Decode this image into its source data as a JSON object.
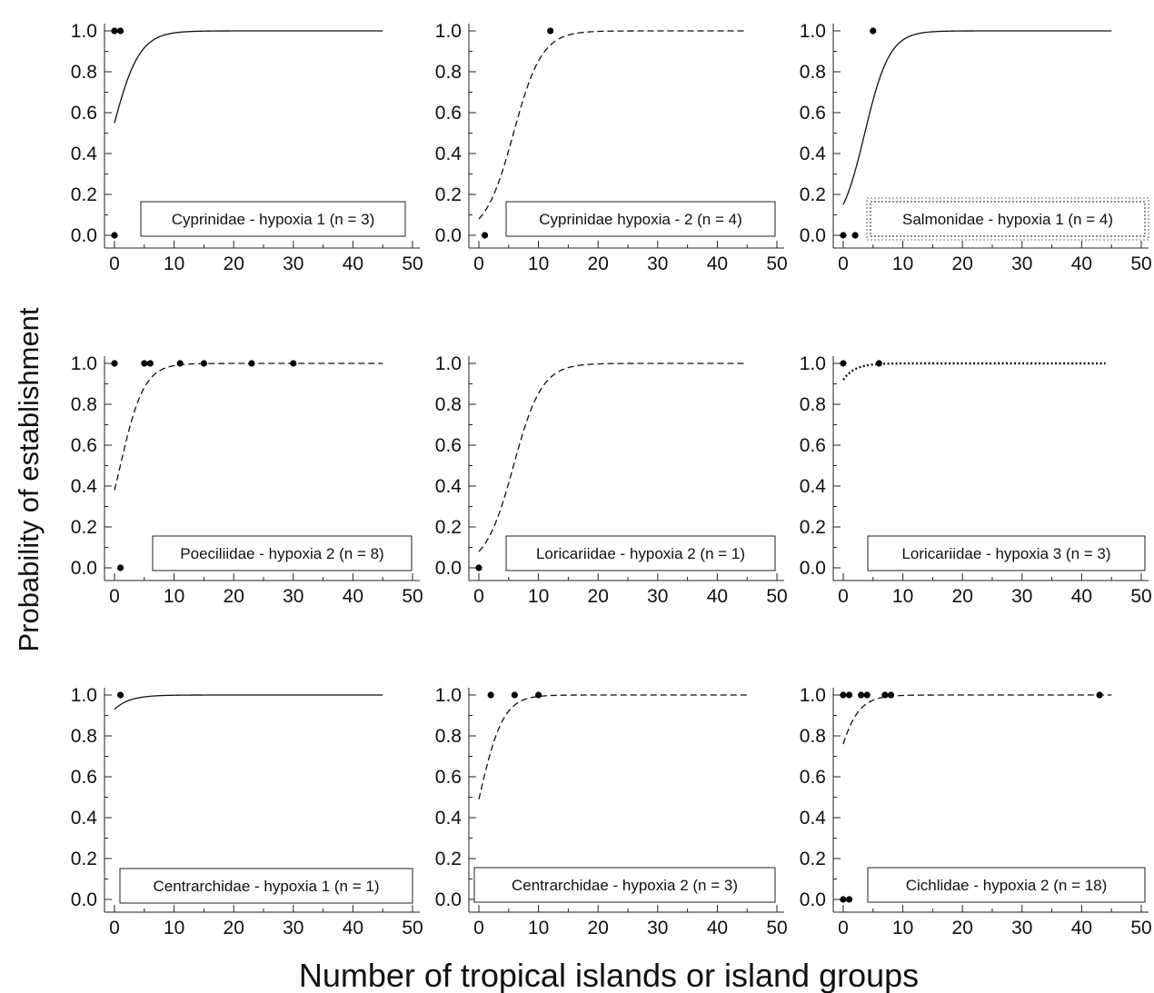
{
  "figure": {
    "ylabel": "Probability of establishment",
    "xlabel": "Number of tropical islands or island groups"
  },
  "chart_data": [
    {
      "type": "line",
      "legend": "Cyprinidae - hypoxia 1 (n = 3)",
      "line_style": "solid",
      "legend_style": "solid",
      "xlim": [
        0,
        50
      ],
      "ylim": [
        0,
        1
      ],
      "xticks": [
        "0",
        "10",
        "20",
        "30",
        "40",
        "50"
      ],
      "yticks": [
        "0.0",
        "0.2",
        "0.4",
        "0.6",
        "0.8",
        "1.0"
      ],
      "curve": {
        "x_start": 0,
        "x_end": 45,
        "y_at_0": 0.55,
        "slope": 0.44
      },
      "points": [
        {
          "x": 0,
          "y": 0
        },
        {
          "x": 0,
          "y": 1
        },
        {
          "x": 1,
          "y": 1
        }
      ]
    },
    {
      "type": "line",
      "legend": "Cyprinidae hypoxia - 2 (n = 4)",
      "line_style": "dashed",
      "legend_style": "solid",
      "xlim": [
        0,
        50
      ],
      "ylim": [
        0,
        1
      ],
      "xticks": [
        "0",
        "10",
        "20",
        "30",
        "40",
        "50"
      ],
      "yticks": [
        "0.0",
        "0.2",
        "0.4",
        "0.6",
        "0.8",
        "1.0"
      ],
      "curve": {
        "x_start": 0,
        "x_end": 45,
        "y_at_0": 0.08,
        "slope": 0.42
      },
      "points": [
        {
          "x": 1,
          "y": 0
        },
        {
          "x": 12,
          "y": 1
        }
      ]
    },
    {
      "type": "line",
      "legend": "Salmonidae - hypoxia 1 (n = 4)",
      "line_style": "solid",
      "legend_style": "dotted",
      "xlim": [
        0,
        50
      ],
      "ylim": [
        0,
        1
      ],
      "xticks": [
        "0",
        "10",
        "20",
        "30",
        "40",
        "50"
      ],
      "yticks": [
        "0.0",
        "0.2",
        "0.4",
        "0.6",
        "0.8",
        "1.0"
      ],
      "curve": {
        "x_start": 0,
        "x_end": 45,
        "y_at_0": 0.15,
        "slope": 0.48
      },
      "points": [
        {
          "x": 0,
          "y": 0
        },
        {
          "x": 2,
          "y": 0
        },
        {
          "x": 5,
          "y": 1
        }
      ]
    },
    {
      "type": "line",
      "legend": "Poeciliidae - hypoxia 2 (n = 8)",
      "line_style": "dashed",
      "legend_style": "solid",
      "xlim": [
        0,
        50
      ],
      "ylim": [
        0,
        1
      ],
      "xticks": [
        "0",
        "10",
        "20",
        "30",
        "40",
        "50"
      ],
      "yticks": [
        "0.0",
        "0.2",
        "0.4",
        "0.6",
        "0.8",
        "1.0"
      ],
      "curve": {
        "x_start": 0,
        "x_end": 45,
        "y_at_0": 0.38,
        "slope": 0.5
      },
      "points": [
        {
          "x": 0,
          "y": 1
        },
        {
          "x": 1,
          "y": 0
        },
        {
          "x": 5,
          "y": 1
        },
        {
          "x": 6,
          "y": 1
        },
        {
          "x": 11,
          "y": 1
        },
        {
          "x": 15,
          "y": 1
        },
        {
          "x": 23,
          "y": 1
        },
        {
          "x": 30,
          "y": 1
        }
      ]
    },
    {
      "type": "line",
      "legend": "Loricariidae - hypoxia 2 (n = 1)",
      "line_style": "dashed",
      "legend_style": "solid",
      "xlim": [
        0,
        50
      ],
      "ylim": [
        0,
        1
      ],
      "xticks": [
        "0",
        "10",
        "20",
        "30",
        "40",
        "50"
      ],
      "yticks": [
        "0.0",
        "0.2",
        "0.4",
        "0.6",
        "0.8",
        "1.0"
      ],
      "curve": {
        "x_start": 0,
        "x_end": 45,
        "y_at_0": 0.08,
        "slope": 0.42
      },
      "points": [
        {
          "x": 0,
          "y": 0
        }
      ]
    },
    {
      "type": "line",
      "legend": "Loricariidae - hypoxia 3 (n = 3)",
      "line_style": "dotted",
      "legend_style": "solid",
      "xlim": [
        0,
        50
      ],
      "ylim": [
        0,
        1
      ],
      "xticks": [
        "0",
        "10",
        "20",
        "30",
        "40",
        "50"
      ],
      "yticks": [
        "0.0",
        "0.2",
        "0.4",
        "0.6",
        "0.8",
        "1.0"
      ],
      "curve": {
        "x_start": 0,
        "x_end": 44,
        "y_at_0": 0.92,
        "slope": 0.55
      },
      "points": [
        {
          "x": 0,
          "y": 1
        },
        {
          "x": 6,
          "y": 1
        }
      ]
    },
    {
      "type": "line",
      "legend": "Centrarchidae - hypoxia 1 (n = 1)",
      "line_style": "solid",
      "legend_style": "solid",
      "xlim": [
        0,
        50
      ],
      "ylim": [
        0,
        1
      ],
      "xticks": [
        "0",
        "10",
        "20",
        "30",
        "40",
        "50"
      ],
      "yticks": [
        "0.0",
        "0.2",
        "0.4",
        "0.6",
        "0.8",
        "1.0"
      ],
      "curve": {
        "x_start": 0,
        "x_end": 45,
        "y_at_0": 0.93,
        "slope": 0.42
      },
      "points": [
        {
          "x": 1,
          "y": 1
        }
      ]
    },
    {
      "type": "line",
      "legend": "Centrarchidae - hypoxia 2 (n = 3)",
      "line_style": "dashed",
      "legend_style": "solid",
      "xlim": [
        0,
        50
      ],
      "ylim": [
        0,
        1
      ],
      "xticks": [
        "0",
        "10",
        "20",
        "30",
        "40",
        "50"
      ],
      "yticks": [
        "0.0",
        "0.2",
        "0.4",
        "0.6",
        "0.8",
        "1.0"
      ],
      "curve": {
        "x_start": 0,
        "x_end": 45,
        "y_at_0": 0.49,
        "slope": 0.5
      },
      "points": [
        {
          "x": 2,
          "y": 1
        },
        {
          "x": 6,
          "y": 1
        },
        {
          "x": 10,
          "y": 1
        }
      ]
    },
    {
      "type": "line",
      "legend": "Cichlidae - hypoxia 2 (n = 18)",
      "line_style": "dashed",
      "legend_style": "solid",
      "xlim": [
        0,
        50
      ],
      "ylim": [
        0,
        1
      ],
      "xticks": [
        "0",
        "10",
        "20",
        "30",
        "40",
        "50"
      ],
      "yticks": [
        "0.0",
        "0.2",
        "0.4",
        "0.6",
        "0.8",
        "1.0"
      ],
      "curve": {
        "x_start": 0,
        "x_end": 45,
        "y_at_0": 0.76,
        "slope": 0.5
      },
      "points": [
        {
          "x": 0,
          "y": 0
        },
        {
          "x": 0,
          "y": 1
        },
        {
          "x": 1,
          "y": 0
        },
        {
          "x": 1,
          "y": 1
        },
        {
          "x": 3,
          "y": 1
        },
        {
          "x": 4,
          "y": 1
        },
        {
          "x": 7,
          "y": 1
        },
        {
          "x": 8,
          "y": 1
        },
        {
          "x": 43,
          "y": 1
        }
      ]
    }
  ]
}
